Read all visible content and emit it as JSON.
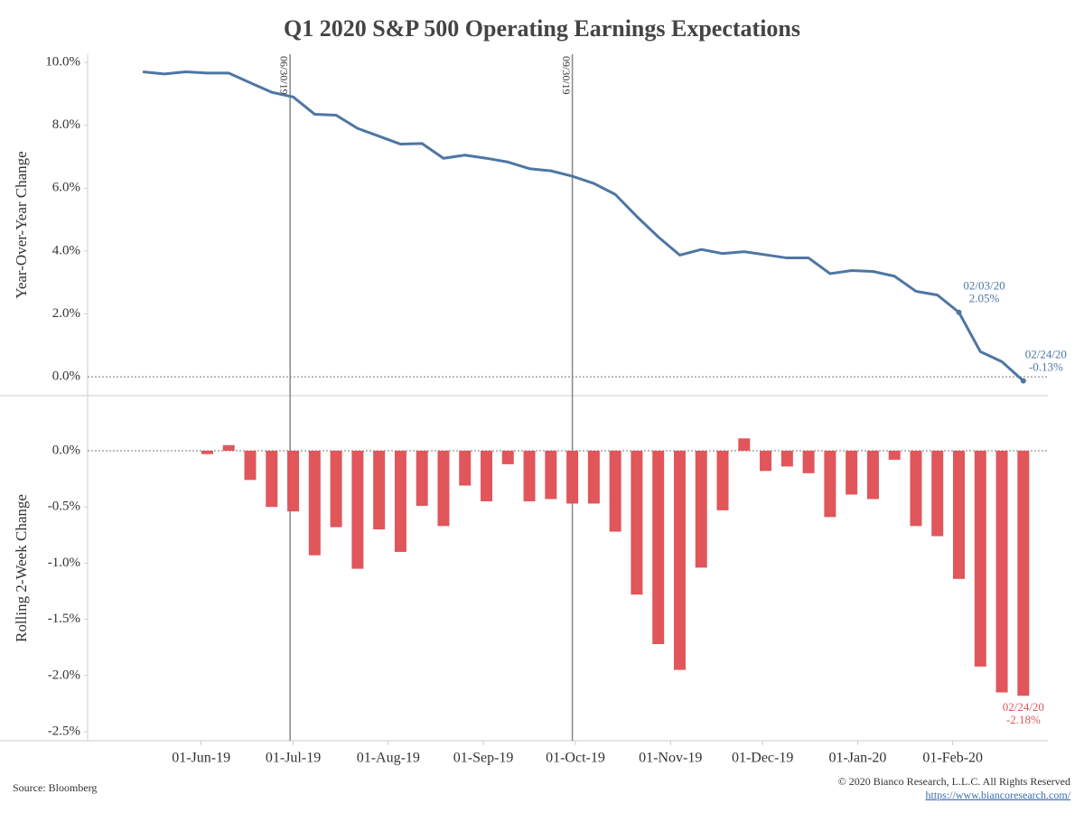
{
  "title": "Q1 2020 S&P 500 Operating Earnings Expectations",
  "source": "Source: Bloomberg",
  "credit": "© 2020 Bianco Research, L.L.C. All Rights Reserved",
  "url": "https://www.biancoresearch.com/",
  "chart_data": [
    {
      "type": "line",
      "ylabel": "Year-Over-Year Change",
      "color": "#4e76a3",
      "x": [
        "2019-05-13",
        "2019-05-20",
        "2019-05-27",
        "2019-06-03",
        "2019-06-10",
        "2019-06-17",
        "2019-06-24",
        "2019-07-01",
        "2019-07-08",
        "2019-07-15",
        "2019-07-22",
        "2019-07-29",
        "2019-08-05",
        "2019-08-12",
        "2019-08-19",
        "2019-08-26",
        "2019-09-02",
        "2019-09-09",
        "2019-09-16",
        "2019-09-23",
        "2019-09-30",
        "2019-10-07",
        "2019-10-14",
        "2019-10-21",
        "2019-10-28",
        "2019-11-04",
        "2019-11-11",
        "2019-11-18",
        "2019-11-25",
        "2019-12-02",
        "2019-12-09",
        "2019-12-16",
        "2019-12-23",
        "2019-12-30",
        "2020-01-06",
        "2020-01-13",
        "2020-01-20",
        "2020-01-27",
        "2020-02-03",
        "2020-02-10",
        "2020-02-17",
        "2020-02-24"
      ],
      "values": [
        9.7,
        9.63,
        9.7,
        9.66,
        9.66,
        9.35,
        9.05,
        8.9,
        8.35,
        8.32,
        7.9,
        7.65,
        7.4,
        7.42,
        6.95,
        7.05,
        6.95,
        6.83,
        6.62,
        6.55,
        6.38,
        6.15,
        5.8,
        5.1,
        4.45,
        3.87,
        4.05,
        3.92,
        3.98,
        3.88,
        3.78,
        3.78,
        3.28,
        3.38,
        3.35,
        3.2,
        2.72,
        2.6,
        2.05,
        0.8,
        0.48,
        -0.13
      ],
      "xlim": [
        "2019-04-25",
        "2020-03-03"
      ],
      "ylim": [
        -0.6,
        10.26
      ],
      "yticks": [
        {
          "value": 0,
          "label": "0.0%"
        },
        {
          "value": 2,
          "label": "2.0%"
        },
        {
          "value": 4,
          "label": "4.0%"
        },
        {
          "value": 6,
          "label": "6.0%"
        },
        {
          "value": 8,
          "label": "8.0%"
        },
        {
          "value": 10,
          "label": "10.0%"
        }
      ],
      "reference_lines": [
        {
          "x": "2019-06-30",
          "label": "06/30/19"
        },
        {
          "x": "2019-09-30",
          "label": "09/30/19"
        }
      ],
      "annotations": [
        {
          "x": "2020-02-03",
          "y": 2.05,
          "label": "02/03/20",
          "value_label": "2.05%"
        },
        {
          "x": "2020-02-24",
          "y": -0.13,
          "label": "02/24/20",
          "value_label": "-0.13%"
        }
      ]
    },
    {
      "type": "bar",
      "ylabel": "Rolling 2-Week Change",
      "color": "#e0565b",
      "x": [
        "2019-06-03",
        "2019-06-10",
        "2019-06-17",
        "2019-06-24",
        "2019-07-01",
        "2019-07-08",
        "2019-07-15",
        "2019-07-22",
        "2019-07-29",
        "2019-08-05",
        "2019-08-12",
        "2019-08-19",
        "2019-08-26",
        "2019-09-02",
        "2019-09-09",
        "2019-09-16",
        "2019-09-23",
        "2019-09-30",
        "2019-10-07",
        "2019-10-14",
        "2019-10-21",
        "2019-10-28",
        "2019-11-04",
        "2019-11-11",
        "2019-11-18",
        "2019-11-25",
        "2019-12-02",
        "2019-12-09",
        "2019-12-16",
        "2019-12-23",
        "2019-12-30",
        "2020-01-06",
        "2020-01-13",
        "2020-01-20",
        "2020-01-27",
        "2020-02-03",
        "2020-02-10",
        "2020-02-17",
        "2020-02-24"
      ],
      "values": [
        -0.03,
        0.05,
        -0.26,
        -0.5,
        -0.54,
        -0.93,
        -0.68,
        -1.05,
        -0.7,
        -0.9,
        -0.49,
        -0.67,
        -0.31,
        -0.45,
        -0.12,
        -0.45,
        -0.43,
        -0.47,
        -0.47,
        -0.72,
        -1.28,
        -1.72,
        -1.95,
        -1.04,
        -0.53,
        0.11,
        -0.18,
        -0.14,
        -0.2,
        -0.59,
        -0.39,
        -0.43,
        -0.08,
        -0.67,
        -0.76,
        -1.14,
        -1.92,
        -2.15,
        -2.18
      ],
      "xlim": [
        "2019-04-25",
        "2020-03-03"
      ],
      "ylim": [
        -2.58,
        0.49
      ],
      "yticks": [
        {
          "value": 0,
          "label": "0.0%"
        },
        {
          "value": -0.5,
          "label": "-0.5%"
        },
        {
          "value": -1,
          "label": "-1.0%"
        },
        {
          "value": -1.5,
          "label": "-1.5%"
        },
        {
          "value": -2,
          "label": "-2.0%"
        },
        {
          "value": -2.5,
          "label": "-2.5%"
        }
      ],
      "xticks": [
        {
          "value": "2019-06-01",
          "label": "01-Jun-19"
        },
        {
          "value": "2019-07-01",
          "label": "01-Jul-19"
        },
        {
          "value": "2019-08-01",
          "label": "01-Aug-19"
        },
        {
          "value": "2019-09-01",
          "label": "01-Sep-19"
        },
        {
          "value": "2019-10-01",
          "label": "01-Oct-19"
        },
        {
          "value": "2019-11-01",
          "label": "01-Nov-19"
        },
        {
          "value": "2019-12-01",
          "label": "01-Dec-19"
        },
        {
          "value": "2020-01-01",
          "label": "01-Jan-20"
        },
        {
          "value": "2020-02-01",
          "label": "01-Feb-20"
        }
      ],
      "annotations": [
        {
          "x": "2020-02-24",
          "y": -2.18,
          "label": "02/24/20",
          "value_label": "-2.18%"
        }
      ]
    }
  ]
}
